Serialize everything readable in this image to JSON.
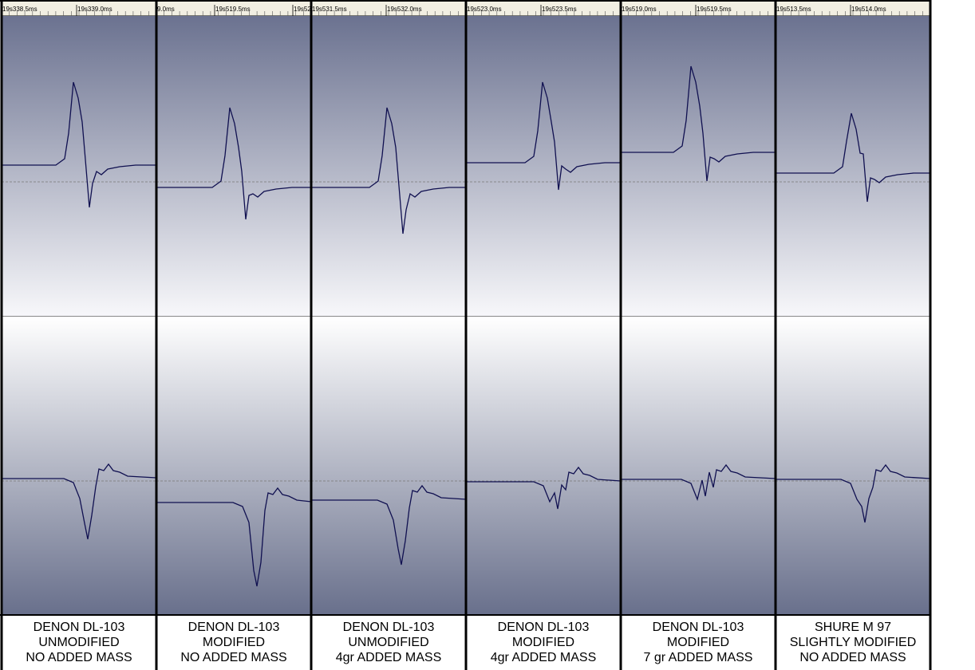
{
  "panels": [
    {
      "ruler": [
        "19s338.5ms",
        "19s339.0ms"
      ],
      "caption": [
        "DENON DL-103",
        "UNMODIFIED",
        "NO ADDED MASS"
      ]
    },
    {
      "ruler": [
        "9.0ms",
        "19s519.5ms",
        "19s52"
      ],
      "caption": [
        "DENON DL-103",
        "MODIFIED",
        "NO ADDED MASS"
      ]
    },
    {
      "ruler": [
        "19s531.5ms",
        "19s532.0ms"
      ],
      "caption": [
        "DENON DL-103",
        "UNMODIFIED",
        "4gr ADDED MASS"
      ]
    },
    {
      "ruler": [
        "19s523.0ms",
        "19s523.5ms"
      ],
      "caption": [
        "DENON DL-103",
        "MODIFIED",
        "4gr ADDED MASS"
      ]
    },
    {
      "ruler": [
        "19s519.0ms",
        "19s519.5ms"
      ],
      "caption": [
        "DENON DL-103",
        "MODIFIED",
        "7 gr ADDED MASS"
      ]
    },
    {
      "ruler": [
        "19s513.5ms",
        "19s514.0ms"
      ],
      "caption": [
        "SHURE M 97",
        "SLIGHTLY MODIFIED",
        "NO ADDED MASS"
      ]
    }
  ]
}
